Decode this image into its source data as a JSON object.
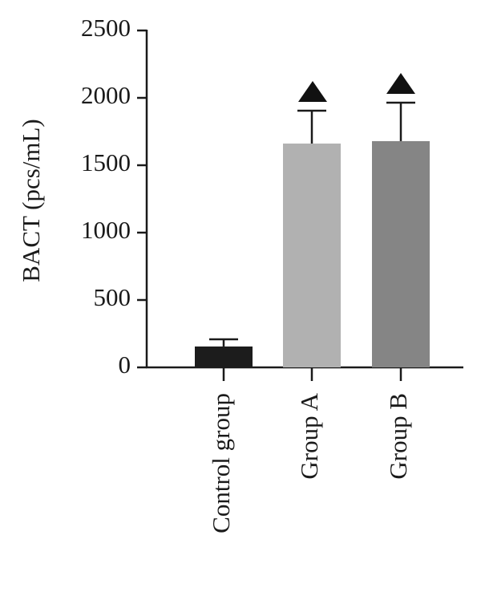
{
  "chart_data": {
    "type": "bar",
    "y_label": "BACT (pcs/mL)",
    "categories": [
      "Control group",
      "Group A",
      "Group B"
    ],
    "values": [
      155,
      1661,
      1679
    ],
    "errors": [
      53,
      244,
      285
    ],
    "colors": [
      "#1c1c1c",
      "#b1b1b1",
      "#858585"
    ],
    "ylim": [
      0,
      2500
    ],
    "yticks": [
      0,
      500,
      1000,
      1500,
      2000,
      2500
    ]
  }
}
